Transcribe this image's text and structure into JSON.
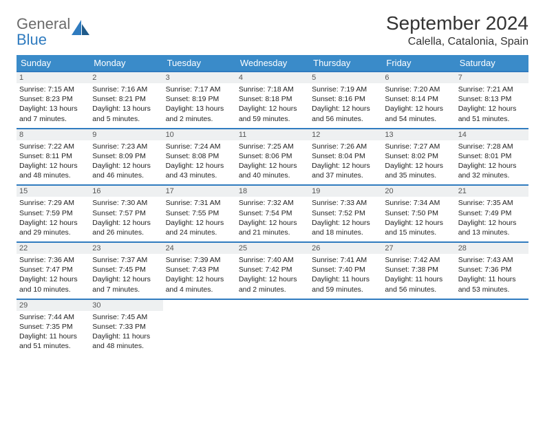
{
  "logo": {
    "word1": "General",
    "word2": "Blue"
  },
  "title": "September 2024",
  "location": "Calella, Catalonia, Spain",
  "colors": {
    "header_bg": "#3a8bc9",
    "divider": "#2f7bbf",
    "daynum_bg": "#eef0f1",
    "logo_gray": "#6b6b6b",
    "logo_blue": "#2f7bbf"
  },
  "weekdays": [
    "Sunday",
    "Monday",
    "Tuesday",
    "Wednesday",
    "Thursday",
    "Friday",
    "Saturday"
  ],
  "weeks": [
    [
      {
        "n": "1",
        "sr": "7:15 AM",
        "ss": "8:23 PM",
        "dl": "13 hours and 7 minutes."
      },
      {
        "n": "2",
        "sr": "7:16 AM",
        "ss": "8:21 PM",
        "dl": "13 hours and 5 minutes."
      },
      {
        "n": "3",
        "sr": "7:17 AM",
        "ss": "8:19 PM",
        "dl": "13 hours and 2 minutes."
      },
      {
        "n": "4",
        "sr": "7:18 AM",
        "ss": "8:18 PM",
        "dl": "12 hours and 59 minutes."
      },
      {
        "n": "5",
        "sr": "7:19 AM",
        "ss": "8:16 PM",
        "dl": "12 hours and 56 minutes."
      },
      {
        "n": "6",
        "sr": "7:20 AM",
        "ss": "8:14 PM",
        "dl": "12 hours and 54 minutes."
      },
      {
        "n": "7",
        "sr": "7:21 AM",
        "ss": "8:13 PM",
        "dl": "12 hours and 51 minutes."
      }
    ],
    [
      {
        "n": "8",
        "sr": "7:22 AM",
        "ss": "8:11 PM",
        "dl": "12 hours and 48 minutes."
      },
      {
        "n": "9",
        "sr": "7:23 AM",
        "ss": "8:09 PM",
        "dl": "12 hours and 46 minutes."
      },
      {
        "n": "10",
        "sr": "7:24 AM",
        "ss": "8:08 PM",
        "dl": "12 hours and 43 minutes."
      },
      {
        "n": "11",
        "sr": "7:25 AM",
        "ss": "8:06 PM",
        "dl": "12 hours and 40 minutes."
      },
      {
        "n": "12",
        "sr": "7:26 AM",
        "ss": "8:04 PM",
        "dl": "12 hours and 37 minutes."
      },
      {
        "n": "13",
        "sr": "7:27 AM",
        "ss": "8:02 PM",
        "dl": "12 hours and 35 minutes."
      },
      {
        "n": "14",
        "sr": "7:28 AM",
        "ss": "8:01 PM",
        "dl": "12 hours and 32 minutes."
      }
    ],
    [
      {
        "n": "15",
        "sr": "7:29 AM",
        "ss": "7:59 PM",
        "dl": "12 hours and 29 minutes."
      },
      {
        "n": "16",
        "sr": "7:30 AM",
        "ss": "7:57 PM",
        "dl": "12 hours and 26 minutes."
      },
      {
        "n": "17",
        "sr": "7:31 AM",
        "ss": "7:55 PM",
        "dl": "12 hours and 24 minutes."
      },
      {
        "n": "18",
        "sr": "7:32 AM",
        "ss": "7:54 PM",
        "dl": "12 hours and 21 minutes."
      },
      {
        "n": "19",
        "sr": "7:33 AM",
        "ss": "7:52 PM",
        "dl": "12 hours and 18 minutes."
      },
      {
        "n": "20",
        "sr": "7:34 AM",
        "ss": "7:50 PM",
        "dl": "12 hours and 15 minutes."
      },
      {
        "n": "21",
        "sr": "7:35 AM",
        "ss": "7:49 PM",
        "dl": "12 hours and 13 minutes."
      }
    ],
    [
      {
        "n": "22",
        "sr": "7:36 AM",
        "ss": "7:47 PM",
        "dl": "12 hours and 10 minutes."
      },
      {
        "n": "23",
        "sr": "7:37 AM",
        "ss": "7:45 PM",
        "dl": "12 hours and 7 minutes."
      },
      {
        "n": "24",
        "sr": "7:39 AM",
        "ss": "7:43 PM",
        "dl": "12 hours and 4 minutes."
      },
      {
        "n": "25",
        "sr": "7:40 AM",
        "ss": "7:42 PM",
        "dl": "12 hours and 2 minutes."
      },
      {
        "n": "26",
        "sr": "7:41 AM",
        "ss": "7:40 PM",
        "dl": "11 hours and 59 minutes."
      },
      {
        "n": "27",
        "sr": "7:42 AM",
        "ss": "7:38 PM",
        "dl": "11 hours and 56 minutes."
      },
      {
        "n": "28",
        "sr": "7:43 AM",
        "ss": "7:36 PM",
        "dl": "11 hours and 53 minutes."
      }
    ],
    [
      {
        "n": "29",
        "sr": "7:44 AM",
        "ss": "7:35 PM",
        "dl": "11 hours and 51 minutes."
      },
      {
        "n": "30",
        "sr": "7:45 AM",
        "ss": "7:33 PM",
        "dl": "11 hours and 48 minutes."
      },
      null,
      null,
      null,
      null,
      null
    ]
  ],
  "labels": {
    "sunrise": "Sunrise:",
    "sunset": "Sunset:",
    "daylight": "Daylight:"
  }
}
